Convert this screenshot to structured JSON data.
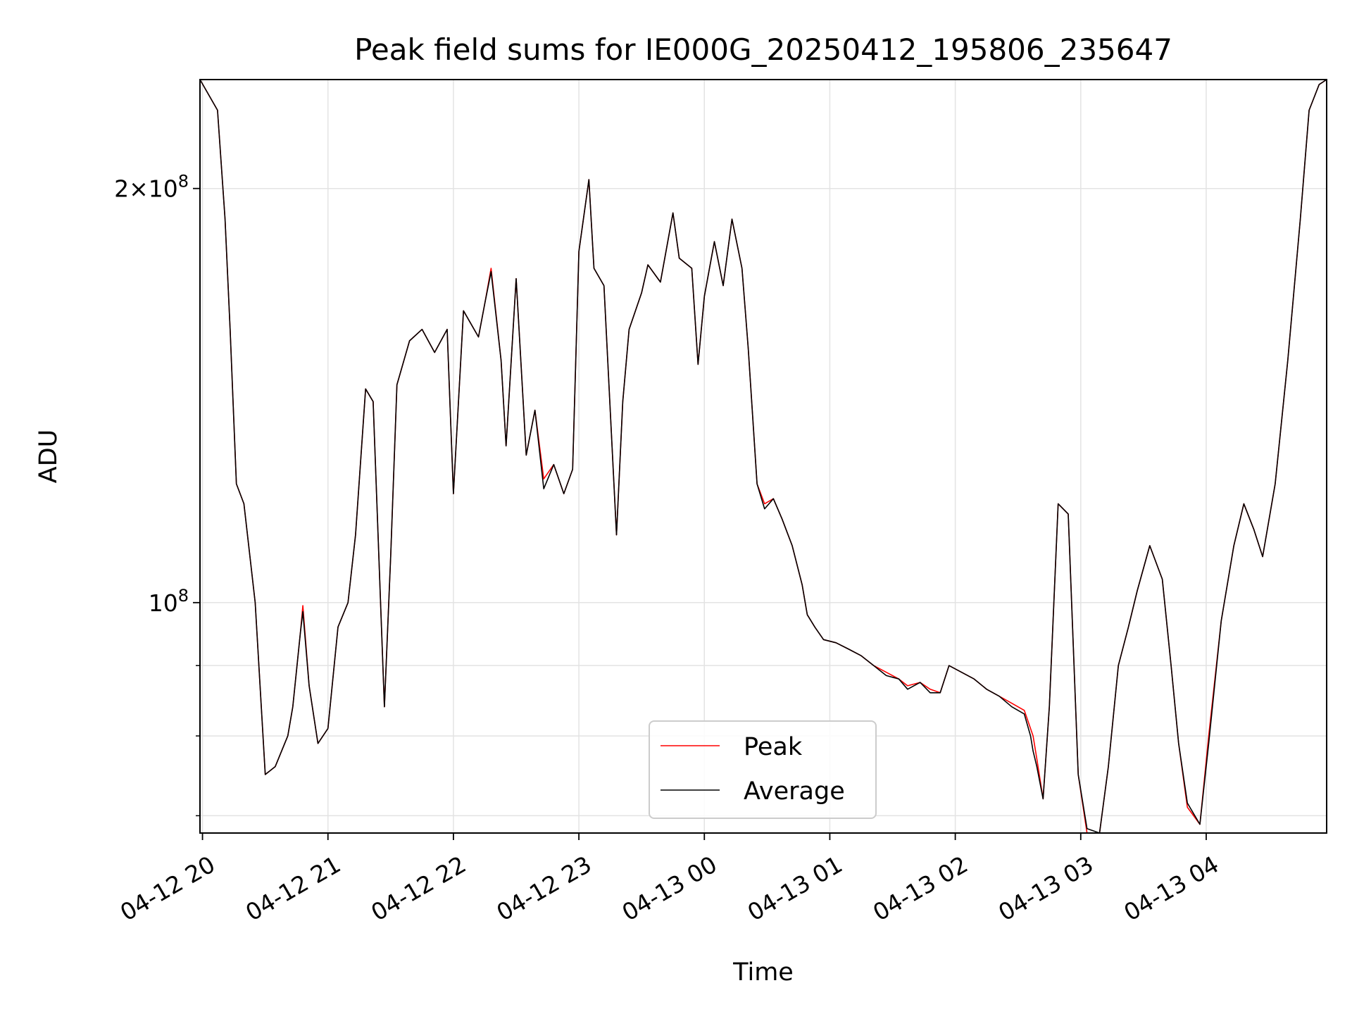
{
  "chart_data": {
    "type": "line",
    "title": "Peak field sums for IE000G_20250412_195806_235647",
    "xlabel": "Time",
    "ylabel": "ADU",
    "yscale": "log",
    "ylim": [
      68000000,
      240000000
    ],
    "xlim_hours": [
      19.98,
      28.96
    ],
    "x_ticks": [
      {
        "label": "04-12 20",
        "hour": 20
      },
      {
        "label": "04-12 21",
        "hour": 21
      },
      {
        "label": "04-12 22",
        "hour": 22
      },
      {
        "label": "04-12 23",
        "hour": 23
      },
      {
        "label": "04-13 00",
        "hour": 24
      },
      {
        "label": "04-13 01",
        "hour": 25
      },
      {
        "label": "04-13 02",
        "hour": 26
      },
      {
        "label": "04-13 03",
        "hour": 27
      },
      {
        "label": "04-13 04",
        "hour": 28
      }
    ],
    "y_major_ticks": [
      {
        "label_mantissa": "2",
        "label_sep": "×",
        "label_base": "10",
        "label_exp": "8",
        "value": 200000000
      },
      {
        "label_mantissa": "",
        "label_sep": "",
        "label_base": "10",
        "label_exp": "8",
        "value": 100000000
      }
    ],
    "y_minor_ticks": [
      70000000,
      80000000,
      90000000
    ],
    "grid": true,
    "legend": {
      "placement": "lower center",
      "entries": [
        "Peak",
        "Average"
      ]
    },
    "series": [
      {
        "name": "Peak",
        "color": "#ff0000",
        "points": [
          [
            19.98,
            240000000
          ],
          [
            20.12,
            228000000
          ],
          [
            20.18,
            190000000
          ],
          [
            20.22,
            158000000
          ],
          [
            20.27,
            122000000
          ],
          [
            20.33,
            118000000
          ],
          [
            20.42,
            100000000
          ],
          [
            20.5,
            75000000
          ],
          [
            20.58,
            76000000
          ],
          [
            20.68,
            80000000
          ],
          [
            20.72,
            84000000
          ],
          [
            20.78,
            95000000
          ],
          [
            20.8,
            99500000
          ],
          [
            20.85,
            87000000
          ],
          [
            20.92,
            79000000
          ],
          [
            21.0,
            81000000
          ],
          [
            21.08,
            96000000
          ],
          [
            21.16,
            100000000
          ],
          [
            21.22,
            112000000
          ],
          [
            21.3,
            143000000
          ],
          [
            21.36,
            140000000
          ],
          [
            21.45,
            84000000
          ],
          [
            21.5,
            108000000
          ],
          [
            21.55,
            144000000
          ],
          [
            21.65,
            155000000
          ],
          [
            21.75,
            158000000
          ],
          [
            21.85,
            152000000
          ],
          [
            21.95,
            158000000
          ],
          [
            22.0,
            120000000
          ],
          [
            22.08,
            163000000
          ],
          [
            22.2,
            156000000
          ],
          [
            22.25,
            165000000
          ],
          [
            22.3,
            175000000
          ],
          [
            22.38,
            150000000
          ],
          [
            22.42,
            130000000
          ],
          [
            22.5,
            172000000
          ],
          [
            22.58,
            128000000
          ],
          [
            22.65,
            138000000
          ],
          [
            22.72,
            123000000
          ],
          [
            22.8,
            126000000
          ],
          [
            22.88,
            120000000
          ],
          [
            22.95,
            125000000
          ],
          [
            23.0,
            180000000
          ],
          [
            23.08,
            203000000
          ],
          [
            23.12,
            175000000
          ],
          [
            23.2,
            170000000
          ],
          [
            23.25,
            138000000
          ],
          [
            23.3,
            112000000
          ],
          [
            23.35,
            140000000
          ],
          [
            23.4,
            158000000
          ],
          [
            23.5,
            168000000
          ],
          [
            23.55,
            176000000
          ],
          [
            23.65,
            171000000
          ],
          [
            23.75,
            192000000
          ],
          [
            23.8,
            178000000
          ],
          [
            23.9,
            175000000
          ],
          [
            23.95,
            149000000
          ],
          [
            24.0,
            167000000
          ],
          [
            24.08,
            183000000
          ],
          [
            24.15,
            170000000
          ],
          [
            24.22,
            190000000
          ],
          [
            24.3,
            175000000
          ],
          [
            24.35,
            153000000
          ],
          [
            24.42,
            122000000
          ],
          [
            24.48,
            118000000
          ],
          [
            24.55,
            119000000
          ],
          [
            24.62,
            115000000
          ],
          [
            24.7,
            110000000
          ],
          [
            24.78,
            103000000
          ],
          [
            24.82,
            98000000
          ],
          [
            24.88,
            96000000
          ],
          [
            24.95,
            94000000
          ],
          [
            25.05,
            93500000
          ],
          [
            25.15,
            92500000
          ],
          [
            25.25,
            91500000
          ],
          [
            25.35,
            90000000
          ],
          [
            25.45,
            89000000
          ],
          [
            25.55,
            88000000
          ],
          [
            25.62,
            87000000
          ],
          [
            25.72,
            87500000
          ],
          [
            25.8,
            86500000
          ],
          [
            25.88,
            86000000
          ],
          [
            25.95,
            90000000
          ],
          [
            26.05,
            89000000
          ],
          [
            26.15,
            88000000
          ],
          [
            26.25,
            86500000
          ],
          [
            26.35,
            85500000
          ],
          [
            26.45,
            84500000
          ],
          [
            26.55,
            83500000
          ],
          [
            26.6,
            81000000
          ],
          [
            26.62,
            80000000
          ],
          [
            26.65,
            77000000
          ],
          [
            26.7,
            72000000
          ],
          [
            26.75,
            84000000
          ],
          [
            26.82,
            118000000
          ],
          [
            26.9,
            116000000
          ],
          [
            26.98,
            75000000
          ],
          [
            27.05,
            68000000
          ],
          [
            27.15,
            68000000
          ],
          [
            27.22,
            76000000
          ],
          [
            27.3,
            90000000
          ],
          [
            27.38,
            96000000
          ],
          [
            27.45,
            102000000
          ],
          [
            27.55,
            110000000
          ],
          [
            27.65,
            104000000
          ],
          [
            27.72,
            90000000
          ],
          [
            27.78,
            79000000
          ],
          [
            27.85,
            71000000
          ],
          [
            27.95,
            69000000
          ],
          [
            28.02,
            80000000
          ],
          [
            28.12,
            97000000
          ],
          [
            28.22,
            110000000
          ],
          [
            28.3,
            118000000
          ],
          [
            28.38,
            113000000
          ],
          [
            28.45,
            108000000
          ],
          [
            28.55,
            122000000
          ],
          [
            28.65,
            150000000
          ],
          [
            28.75,
            190000000
          ],
          [
            28.82,
            228000000
          ],
          [
            28.9,
            238000000
          ],
          [
            28.96,
            240000000
          ]
        ]
      },
      {
        "name": "Average",
        "color": "#000000",
        "points": [
          [
            19.98,
            240000000
          ],
          [
            20.12,
            228000000
          ],
          [
            20.18,
            190000000
          ],
          [
            20.22,
            158000000
          ],
          [
            20.27,
            122000000
          ],
          [
            20.33,
            118000000
          ],
          [
            20.42,
            100000000
          ],
          [
            20.5,
            75000000
          ],
          [
            20.58,
            76000000
          ],
          [
            20.68,
            80000000
          ],
          [
            20.72,
            84000000
          ],
          [
            20.78,
            95000000
          ],
          [
            20.8,
            98500000
          ],
          [
            20.85,
            87000000
          ],
          [
            20.92,
            79000000
          ],
          [
            21.0,
            81000000
          ],
          [
            21.08,
            96000000
          ],
          [
            21.16,
            100000000
          ],
          [
            21.22,
            112000000
          ],
          [
            21.3,
            143000000
          ],
          [
            21.36,
            140000000
          ],
          [
            21.45,
            84000000
          ],
          [
            21.5,
            108000000
          ],
          [
            21.55,
            144000000
          ],
          [
            21.65,
            155000000
          ],
          [
            21.75,
            158000000
          ],
          [
            21.85,
            152000000
          ],
          [
            21.95,
            158000000
          ],
          [
            22.0,
            120000000
          ],
          [
            22.08,
            163000000
          ],
          [
            22.2,
            156000000
          ],
          [
            22.25,
            165000000
          ],
          [
            22.3,
            174000000
          ],
          [
            22.38,
            150000000
          ],
          [
            22.42,
            130000000
          ],
          [
            22.5,
            172000000
          ],
          [
            22.58,
            128000000
          ],
          [
            22.65,
            138000000
          ],
          [
            22.72,
            121000000
          ],
          [
            22.8,
            126000000
          ],
          [
            22.88,
            120000000
          ],
          [
            22.95,
            125000000
          ],
          [
            23.0,
            180000000
          ],
          [
            23.08,
            203000000
          ],
          [
            23.12,
            175000000
          ],
          [
            23.2,
            170000000
          ],
          [
            23.25,
            138000000
          ],
          [
            23.3,
            112000000
          ],
          [
            23.35,
            140000000
          ],
          [
            23.4,
            158000000
          ],
          [
            23.5,
            168000000
          ],
          [
            23.55,
            176000000
          ],
          [
            23.65,
            171000000
          ],
          [
            23.75,
            192000000
          ],
          [
            23.8,
            178000000
          ],
          [
            23.9,
            175000000
          ],
          [
            23.95,
            149000000
          ],
          [
            24.0,
            167000000
          ],
          [
            24.08,
            183000000
          ],
          [
            24.15,
            170000000
          ],
          [
            24.22,
            190000000
          ],
          [
            24.3,
            175000000
          ],
          [
            24.35,
            153000000
          ],
          [
            24.42,
            122000000
          ],
          [
            24.48,
            117000000
          ],
          [
            24.55,
            119000000
          ],
          [
            24.62,
            115000000
          ],
          [
            24.7,
            110000000
          ],
          [
            24.78,
            103000000
          ],
          [
            24.82,
            98000000
          ],
          [
            24.88,
            96000000
          ],
          [
            24.95,
            94000000
          ],
          [
            25.05,
            93500000
          ],
          [
            25.15,
            92500000
          ],
          [
            25.25,
            91500000
          ],
          [
            25.35,
            90000000
          ],
          [
            25.45,
            88500000
          ],
          [
            25.55,
            88000000
          ],
          [
            25.62,
            86500000
          ],
          [
            25.72,
            87500000
          ],
          [
            25.8,
            86000000
          ],
          [
            25.88,
            86000000
          ],
          [
            25.95,
            90000000
          ],
          [
            26.05,
            89000000
          ],
          [
            26.15,
            88000000
          ],
          [
            26.25,
            86500000
          ],
          [
            26.35,
            85500000
          ],
          [
            26.45,
            84000000
          ],
          [
            26.55,
            83000000
          ],
          [
            26.6,
            80000000
          ],
          [
            26.62,
            78000000
          ],
          [
            26.65,
            76000000
          ],
          [
            26.7,
            72000000
          ],
          [
            26.75,
            84000000
          ],
          [
            26.82,
            118000000
          ],
          [
            26.9,
            116000000
          ],
          [
            26.98,
            75000000
          ],
          [
            27.05,
            68500000
          ],
          [
            27.15,
            68000000
          ],
          [
            27.22,
            76000000
          ],
          [
            27.3,
            90000000
          ],
          [
            27.38,
            96000000
          ],
          [
            27.45,
            102000000
          ],
          [
            27.55,
            110000000
          ],
          [
            27.65,
            104000000
          ],
          [
            27.72,
            90000000
          ],
          [
            27.78,
            79000000
          ],
          [
            27.85,
            71500000
          ],
          [
            27.95,
            69000000
          ],
          [
            28.02,
            79000000
          ],
          [
            28.12,
            97000000
          ],
          [
            28.22,
            110000000
          ],
          [
            28.3,
            118000000
          ],
          [
            28.38,
            113000000
          ],
          [
            28.45,
            108000000
          ],
          [
            28.55,
            122000000
          ],
          [
            28.65,
            150000000
          ],
          [
            28.75,
            190000000
          ],
          [
            28.82,
            228000000
          ],
          [
            28.9,
            238000000
          ],
          [
            28.96,
            240000000
          ]
        ]
      }
    ]
  }
}
